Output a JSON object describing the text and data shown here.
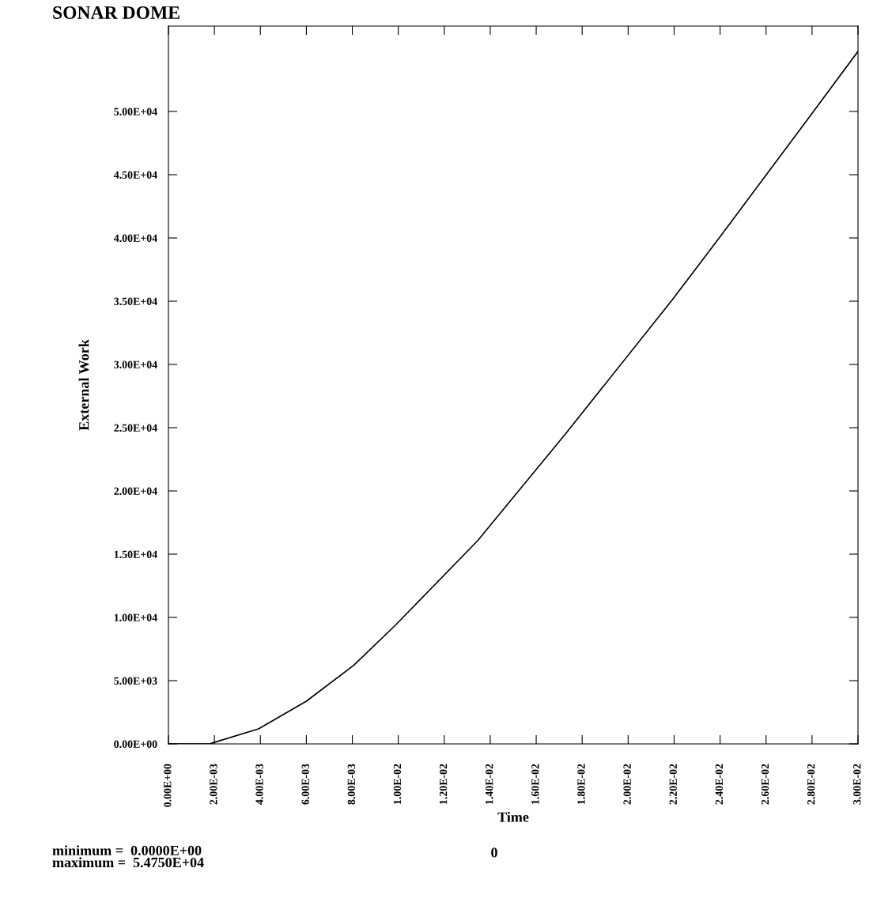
{
  "chart_data": {
    "type": "line",
    "title": "SONAR DOME",
    "xlabel": "Time",
    "ylabel": "External Work",
    "annotations": [
      "minimum =  0.0000E+00\nmaximum =  5.4750E+04",
      "0"
    ],
    "x": [
      0.0,
      0.0018,
      0.00196,
      0.00392,
      0.006,
      0.00805,
      0.00987,
      0.01345,
      0.01727,
      0.0219,
      0.024,
      0.027,
      0.03
    ],
    "series": [
      {
        "color": "#000000",
        "values": [
          0,
          0,
          100,
          1190,
          3375,
          6190,
          9375,
          16060,
          24500,
          35060,
          40100,
          47400,
          54750
        ]
      }
    ],
    "xlim": [
      0,
      0.03
    ],
    "ylim": [
      0,
      56750
    ],
    "xticks": [
      {
        "value": 0,
        "label": "0.00E+00"
      },
      {
        "value": 0.002,
        "label": "2.00E-03"
      },
      {
        "value": 0.004,
        "label": "4.00E-03"
      },
      {
        "value": 0.006,
        "label": "6.00E-03"
      },
      {
        "value": 0.008,
        "label": "8.00E-03"
      },
      {
        "value": 0.01,
        "label": "1.00E-02"
      },
      {
        "value": 0.012,
        "label": "1.20E-02"
      },
      {
        "value": 0.014,
        "label": "1.40E-02"
      },
      {
        "value": 0.016,
        "label": "1.60E-02"
      },
      {
        "value": 0.018,
        "label": "1.80E-02"
      },
      {
        "value": 0.02,
        "label": "2.00E-02"
      },
      {
        "value": 0.022,
        "label": "2.20E-02"
      },
      {
        "value": 0.024,
        "label": "2.40E-02"
      },
      {
        "value": 0.026,
        "label": "2.60E-02"
      },
      {
        "value": 0.028,
        "label": "2.80E-02"
      },
      {
        "value": 0.03,
        "label": "3.00E-02"
      }
    ],
    "yticks": [
      {
        "value": 0,
        "label": "0.00E+00"
      },
      {
        "value": 5000,
        "label": "5.00E+03"
      },
      {
        "value": 10000,
        "label": "1.00E+04"
      },
      {
        "value": 15000,
        "label": "1.50E+04"
      },
      {
        "value": 20000,
        "label": "2.00E+04"
      },
      {
        "value": 25000,
        "label": "2.50E+04"
      },
      {
        "value": 30000,
        "label": "3.00E+04"
      },
      {
        "value": 35000,
        "label": "3.50E+04"
      },
      {
        "value": 40000,
        "label": "4.00E+04"
      },
      {
        "value": 45000,
        "label": "4.50E+04"
      },
      {
        "value": 50000,
        "label": "5.00E+04"
      }
    ],
    "grid": false,
    "legend": false,
    "marker": "none",
    "line_style": "solid"
  }
}
